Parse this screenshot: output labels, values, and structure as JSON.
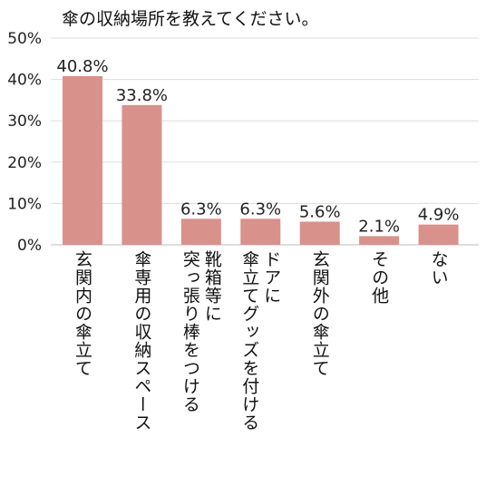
{
  "chart_data": {
    "type": "bar",
    "title": "傘の収納場所を教えてください。",
    "xlabel": "",
    "ylabel": "",
    "ylim": [
      0,
      50
    ],
    "yticks": [
      "0%",
      "10%",
      "20%",
      "30%",
      "40%",
      "50%"
    ],
    "grid": true,
    "bar_color": "#d9918b",
    "categories": [
      "玄関内の傘立て",
      "傘専用の収納スペース",
      "靴箱等に\n突っ張り棒をつける",
      "ドアに\n傘立てグッズを付ける",
      "玄関外の傘立て",
      "その他",
      "ない"
    ],
    "values": [
      40.8,
      33.8,
      6.3,
      6.3,
      5.6,
      2.1,
      4.9
    ],
    "value_labels": [
      "40.8%",
      "33.8%",
      "6.3%",
      "6.3%",
      "5.6%",
      "2.1%",
      "4.9%"
    ]
  }
}
